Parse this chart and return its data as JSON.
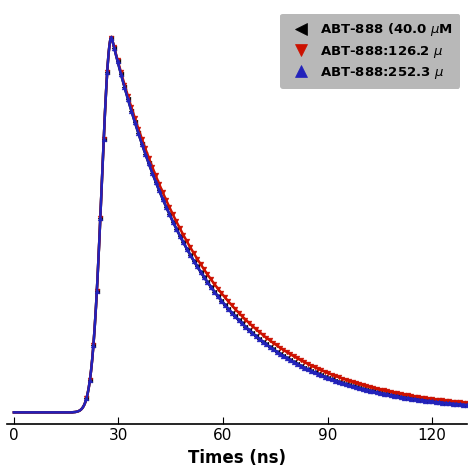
{
  "title": "",
  "xlabel": "Times (ns)",
  "ylabel": "",
  "xlim": [
    -2,
    130
  ],
  "ylim": [
    -0.03,
    1.08
  ],
  "xticks": [
    0,
    30,
    60,
    90,
    120
  ],
  "background_color": "#ffffff",
  "legend_bg": "#b8b8b8",
  "series": [
    {
      "label": "ABT-888 (40.0 μM",
      "color": "#000000",
      "marker": "<",
      "peak_t": 28,
      "sigma_rise": 2.8,
      "decay_tau": 26.0,
      "zorder": 2
    },
    {
      "label": "ABT-888:126.2 μ",
      "color": "#cc1100",
      "marker": "v",
      "peak_t": 28,
      "sigma_rise": 2.8,
      "decay_tau": 27.5,
      "zorder": 3
    },
    {
      "label": "ABT-888:252.3 μ",
      "color": "#2222bb",
      "marker": "^",
      "peak_t": 28,
      "sigma_rise": 2.8,
      "decay_tau": 26.0,
      "zorder": 4
    }
  ],
  "n_points": 8000,
  "marker_every_ns": 1.0,
  "marker_size": 3.5,
  "linewidth": 1.8,
  "xlabel_fontsize": 12,
  "tick_fontsize": 11,
  "legend_fontsize": 9.5
}
